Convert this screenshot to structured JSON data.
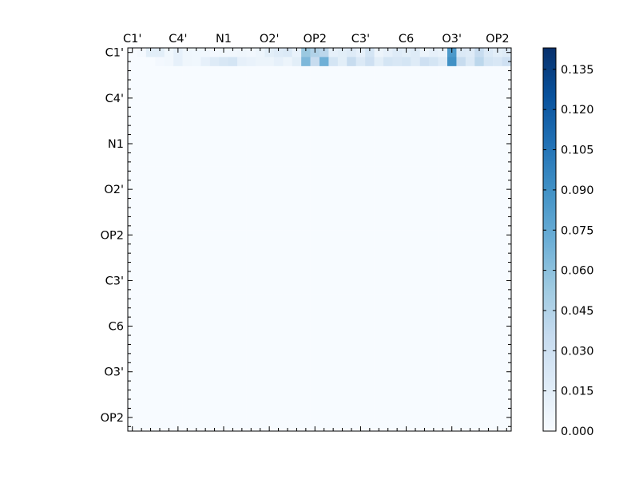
{
  "chart_data": {
    "type": "heatmap",
    "title": "",
    "xlabel": "",
    "ylabel": "",
    "n_atoms": 42,
    "x_tick_labels": [
      "C1'",
      "C4'",
      "N1",
      "O2'",
      "OP2",
      "C3'",
      "C6",
      "O3'",
      "OP2"
    ],
    "y_tick_labels": [
      "C1'",
      "C4'",
      "N1",
      "O2'",
      "OP2",
      "C3'",
      "C6",
      "O3'",
      "OP2"
    ],
    "x_ticks_at_top": true,
    "colormap": "Blues",
    "colorbar": {
      "min": 0.0,
      "max": 0.143,
      "ticks": [
        0.0,
        0.015,
        0.03,
        0.045,
        0.06,
        0.075,
        0.09,
        0.105,
        0.12,
        0.135
      ],
      "tick_labels": [
        "0.000",
        "0.015",
        "0.030",
        "0.045",
        "0.060",
        "0.075",
        "0.090",
        "0.105",
        "0.120",
        "0.135"
      ]
    },
    "lower_triangle_value": 0.0,
    "cells": [
      {
        "row": 0,
        "values": [
          0.0,
          0.002,
          0.015,
          0.015,
          0.005,
          0.012,
          0.006,
          0.005,
          0.004,
          0.003,
          0.004,
          0.004,
          0.006,
          0.004,
          0.007,
          0.015,
          0.018,
          0.02,
          0.01,
          0.055,
          0.045,
          0.04,
          0.012,
          0.015,
          0.018,
          0.012,
          0.025,
          0.008,
          0.012,
          0.018,
          0.015,
          0.018,
          0.008,
          0.012,
          0.01,
          0.085,
          0.02,
          0.018,
          0.035,
          0.02,
          0.015,
          0.018
        ]
      },
      {
        "row": 1,
        "values": [
          0.0,
          0.0,
          0.0,
          0.003,
          0.004,
          0.012,
          0.006,
          0.005,
          0.012,
          0.018,
          0.022,
          0.025,
          0.012,
          0.01,
          0.008,
          0.008,
          0.012,
          0.008,
          0.015,
          0.065,
          0.035,
          0.07,
          0.025,
          0.015,
          0.035,
          0.02,
          0.03,
          0.015,
          0.025,
          0.022,
          0.025,
          0.018,
          0.03,
          0.025,
          0.018,
          0.09,
          0.035,
          0.02,
          0.04,
          0.025,
          0.022,
          0.03
        ]
      }
    ]
  }
}
